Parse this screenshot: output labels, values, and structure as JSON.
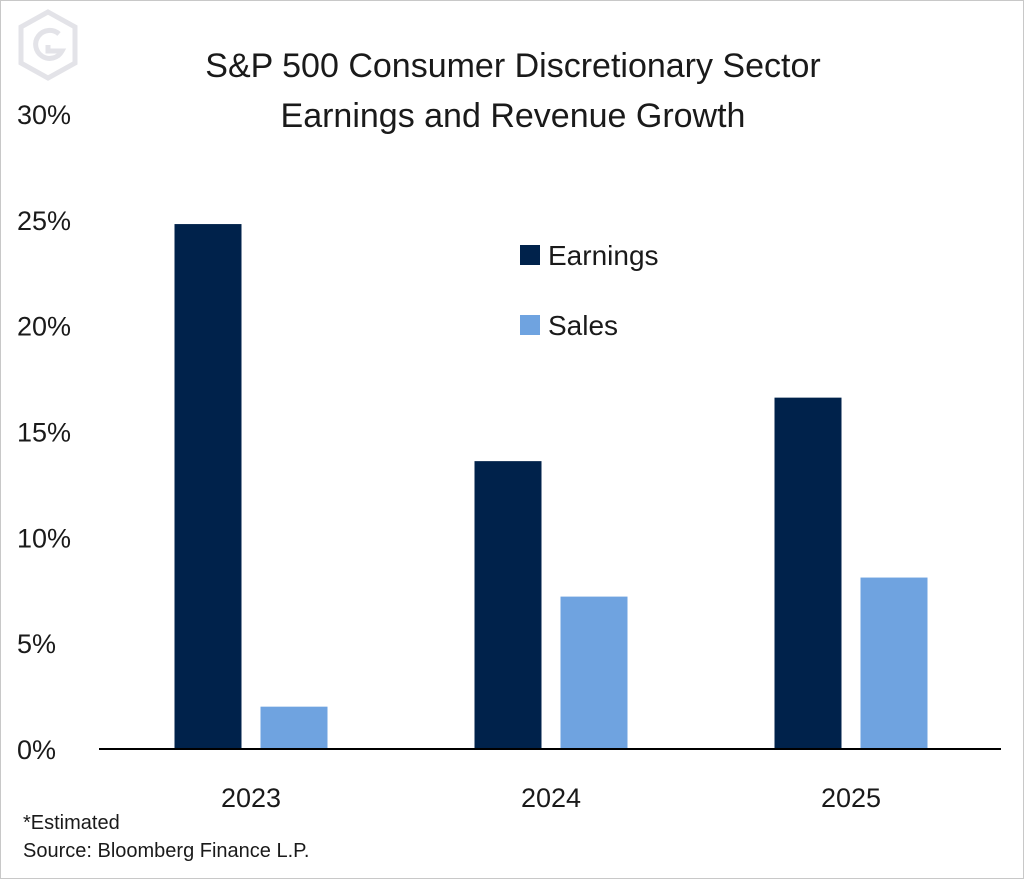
{
  "chart_data": {
    "type": "bar",
    "title_lines": [
      "S&P 500 Consumer Discretionary Sector",
      "Earnings and Revenue Growth"
    ],
    "categories": [
      "2023",
      "2024",
      "2025"
    ],
    "series": [
      {
        "name": "Earnings",
        "values": [
          24.8,
          13.6,
          16.6
        ]
      },
      {
        "name": "Sales",
        "values": [
          2.0,
          7.2,
          8.1
        ]
      }
    ],
    "ylim": [
      0,
      30
    ],
    "yticks": [
      0,
      5,
      10,
      15,
      20,
      25,
      30
    ],
    "ytick_labels": [
      "0%",
      "5%",
      "10%",
      "15%",
      "20%",
      "25%",
      "30%"
    ],
    "grid": false,
    "legend_position": "center",
    "footnotes": [
      "*Estimated",
      "Source: Bloomberg Finance L.P."
    ]
  },
  "colors": {
    "earnings": "#00224b",
    "sales": "#6fa3e0",
    "axis": "#000000",
    "logo": "#e3e3e8"
  },
  "logo_icon": "hexagon-g-logo-icon"
}
